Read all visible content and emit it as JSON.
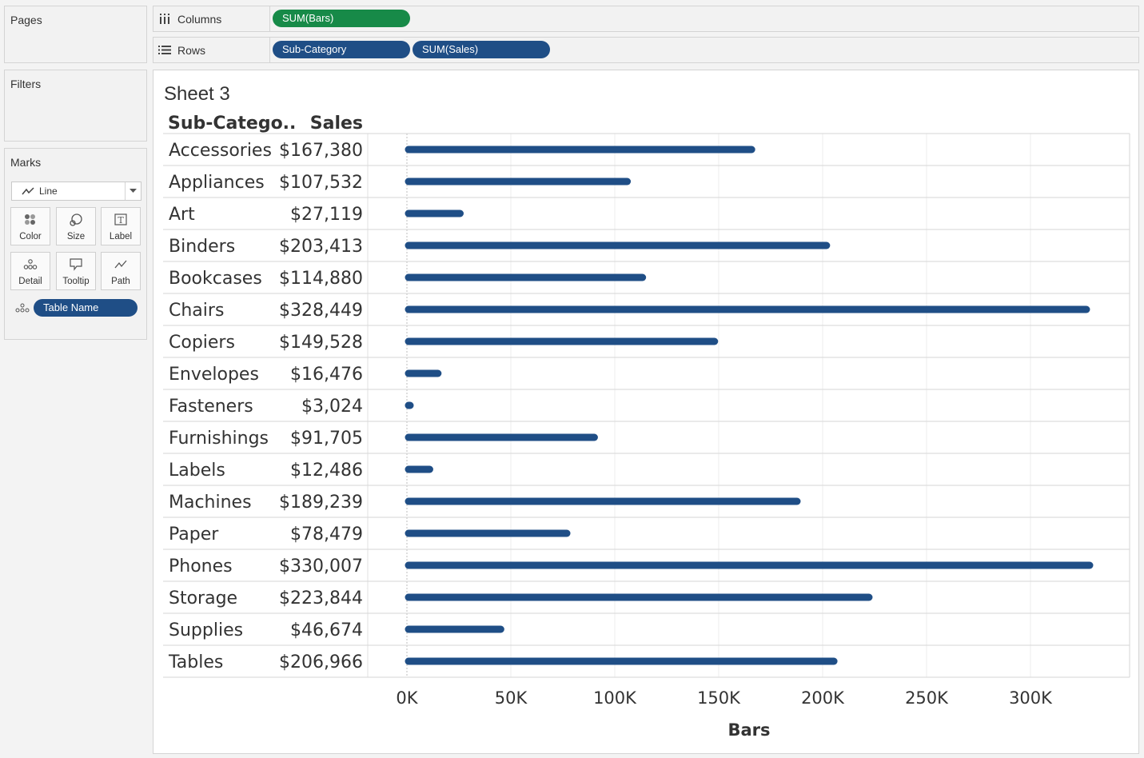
{
  "left_panels": {
    "pages_title": "Pages",
    "filters_title": "Filters",
    "marks_title": "Marks",
    "mark_type": "Line",
    "mark_type_icon": "line-chart-icon",
    "mark_buttons": [
      {
        "label": "Color",
        "icon": "color-dots-icon"
      },
      {
        "label": "Size",
        "icon": "size-icon"
      },
      {
        "label": "Label",
        "icon": "text-label-icon"
      },
      {
        "label": "Detail",
        "icon": "detail-dots-icon"
      },
      {
        "label": "Tooltip",
        "icon": "tooltip-icon"
      },
      {
        "label": "Path",
        "icon": "path-icon"
      }
    ],
    "detail_pill": "Table Name"
  },
  "shelves": {
    "columns_label": "Columns",
    "rows_label": "Rows",
    "columns_pill": "SUM(Bars)",
    "rows_pills": [
      "Sub-Category",
      "SUM(Sales)"
    ]
  },
  "view": {
    "sheet_title": "Sheet 3",
    "header_subcategory": "Sub-Catego..",
    "header_sales": "Sales"
  },
  "colors": {
    "bar": "#1f4e86",
    "pill_blue": "#1f4e86",
    "pill_green": "#178a48"
  },
  "chart_data": {
    "type": "bar",
    "orientation": "horizontal",
    "categories": [
      "Accessories",
      "Appliances",
      "Art",
      "Binders",
      "Bookcases",
      "Chairs",
      "Copiers",
      "Envelopes",
      "Fasteners",
      "Furnishings",
      "Labels",
      "Machines",
      "Paper",
      "Phones",
      "Storage",
      "Supplies",
      "Tables"
    ],
    "sales_labels": [
      "$167,380",
      "$107,532",
      "$27,119",
      "$203,413",
      "$114,880",
      "$328,449",
      "$149,528",
      "$16,476",
      "$3,024",
      "$91,705",
      "$12,486",
      "$189,239",
      "$78,479",
      "$330,007",
      "$223,844",
      "$46,674",
      "$206,966"
    ],
    "values": [
      167380,
      107532,
      27119,
      203413,
      114880,
      328449,
      149528,
      16476,
      3024,
      91705,
      12486,
      189239,
      78479,
      330007,
      223844,
      46674,
      206966
    ],
    "xlabel": "Bars",
    "ylabel": "",
    "xlim": [
      0,
      350000
    ],
    "ticks": [
      0,
      50000,
      100000,
      150000,
      200000,
      250000,
      300000
    ],
    "tick_labels": [
      "0K",
      "50K",
      "100K",
      "150K",
      "200K",
      "250K",
      "300K"
    ],
    "grid": true
  }
}
